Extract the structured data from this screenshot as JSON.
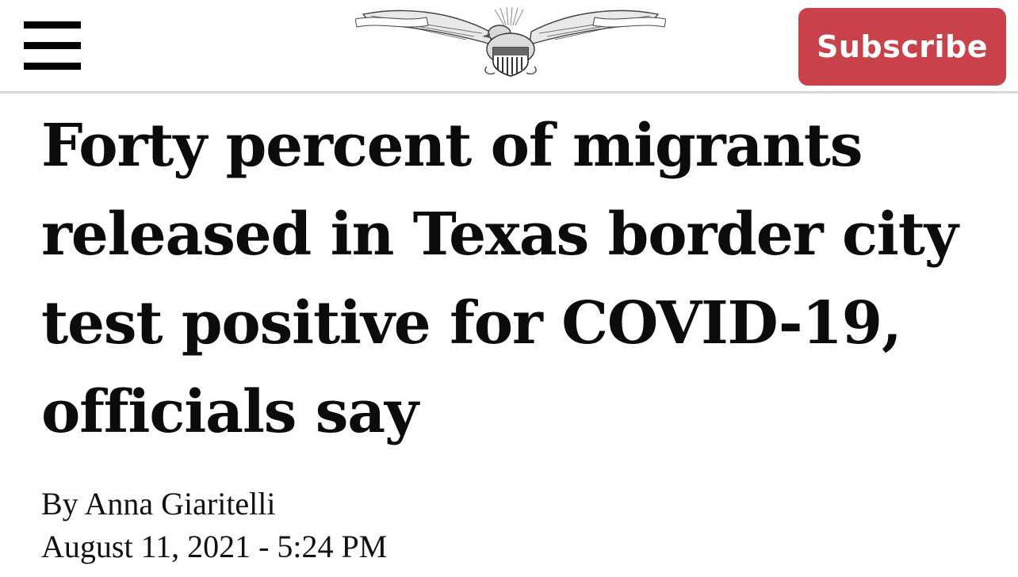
{
  "header": {
    "menu_icon": "hamburger-menu-icon",
    "logo_icon": "eagle-emblem-icon",
    "subscribe_label": "Subscribe",
    "subscribe_color": "#c9424b"
  },
  "article": {
    "headline": "Forty percent of migrants released in Texas border city test positive for COVID-19, officials say",
    "byline_prefix": "By ",
    "author": "Anna Giaritelli",
    "dateline": "August 11, 2021 - 5:24 PM"
  }
}
